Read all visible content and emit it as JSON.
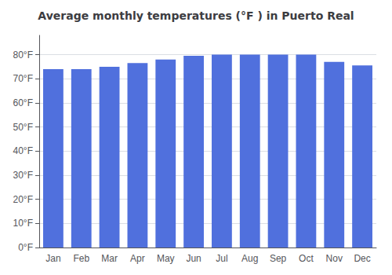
{
  "chart_data": {
    "type": "bar",
    "title": "Average monthly temperatures (°F ) in Puerto Real",
    "categories": [
      "Jan",
      "Feb",
      "Mar",
      "Apr",
      "May",
      "Jun",
      "Jul",
      "Aug",
      "Sep",
      "Oct",
      "Nov",
      "Dec"
    ],
    "values": [
      74,
      74,
      75,
      76.5,
      78,
      79.5,
      80,
      80,
      80,
      80,
      77,
      75.5
    ],
    "ylim": [
      0,
      88
    ],
    "yticks": [
      {
        "value": 0,
        "label": "0°F"
      },
      {
        "value": 10,
        "label": "10°F"
      },
      {
        "value": 20,
        "label": "20°F"
      },
      {
        "value": 30,
        "label": "30°F"
      },
      {
        "value": 40,
        "label": "40°F"
      },
      {
        "value": 50,
        "label": "50°F"
      },
      {
        "value": 60,
        "label": "60°F"
      },
      {
        "value": 70,
        "label": "70°F"
      },
      {
        "value": 80,
        "label": "80°F"
      }
    ],
    "grid": true
  }
}
